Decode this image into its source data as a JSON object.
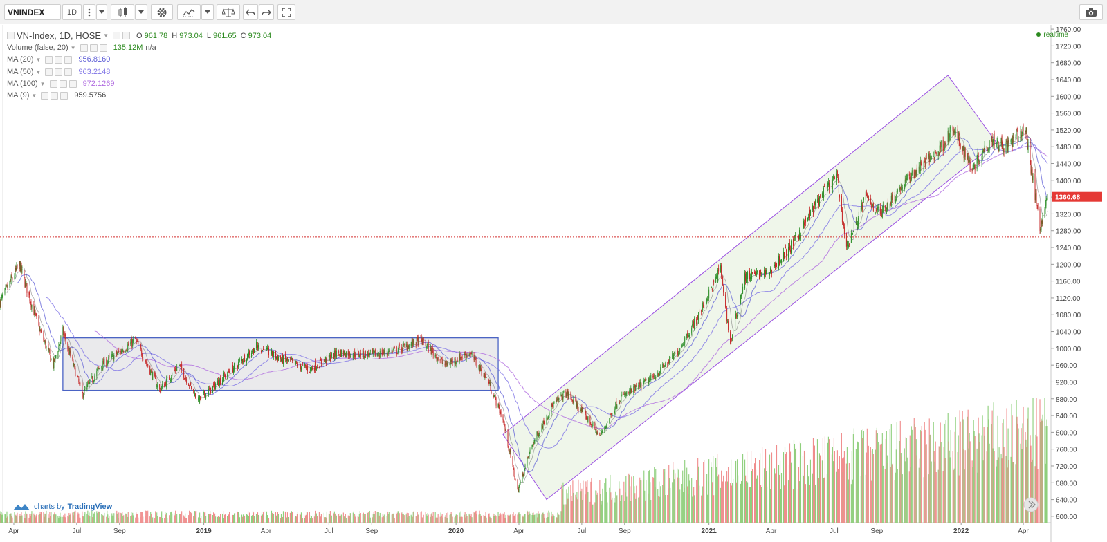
{
  "toolbar": {
    "symbol": "VNINDEX",
    "interval": "1D",
    "tools": [
      "more-vertical-icon",
      "dropdown-arrow-icon",
      "candles-icon",
      "dropdown-arrow-icon",
      "gear-icon",
      "indicators-icon",
      "dropdown-arrow-icon",
      "compare-icon",
      "undo-icon",
      "redo-icon",
      "fullscreen-icon",
      "camera-icon"
    ]
  },
  "legend": {
    "main_title": "VN-Index, 1D, HOSE",
    "o_label": "O",
    "o_value": "961.78",
    "h_label": "H",
    "h_value": "973.04",
    "l_label": "L",
    "l_value": "961.65",
    "c_label": "C",
    "c_value": "973.04",
    "volume_title": "Volume (false, 20)",
    "volume_value": "135.12M",
    "volume_extra": "n/a",
    "ma20_title": "MA (20)",
    "ma20_value": "956.8160",
    "ma50_title": "MA (50)",
    "ma50_value": "963.2148",
    "ma100_title": "MA (100)",
    "ma100_value": "972.1269",
    "ma9_title": "MA (9)",
    "ma9_value": "959.5756",
    "realtime": "realtime"
  },
  "colors": {
    "up": "#2f8f2a",
    "down": "#c62828",
    "vol_up": "#8fcf7c",
    "vol_down": "#f08c8c",
    "ma20": "#5b5bd6",
    "ma50": "#7e73e6",
    "ma100": "#b06be0",
    "ma9": "#444444",
    "channel": "#9b4fe3",
    "rect": "#4a63c4",
    "price_tag": "#e53935"
  },
  "branding": {
    "text": "charts by",
    "link": "TradingView"
  },
  "chart_data": {
    "type": "candlestick",
    "ylim": [
      585,
      1770
    ],
    "y_ticks": [
      600,
      640,
      680,
      720,
      760,
      800,
      840,
      880,
      920,
      960,
      1000,
      1040,
      1080,
      1120,
      1160,
      1200,
      1240,
      1280,
      1320,
      1360,
      1400,
      1440,
      1480,
      1520,
      1560,
      1600,
      1640,
      1680,
      1720,
      1760
    ],
    "y_tick_labels": [
      "600.00",
      "640.00",
      "680.00",
      "720.00",
      "760.00",
      "800.00",
      "840.00",
      "880.00",
      "920.00",
      "960.00",
      "1000.00",
      "1040.00",
      "1080.00",
      "1120.00",
      "1160.00",
      "1200.00",
      "1240.00",
      "1280.00",
      "1320.00",
      "1360.00",
      "1400.00",
      "1440.00",
      "1480.00",
      "1520.00",
      "1560.00",
      "1600.00",
      "1640.00",
      "1680.00",
      "1720.00",
      "1760.00"
    ],
    "x_start": "2018-03-12",
    "x_end": "2022-05-10",
    "x_ticks": [
      {
        "date": "2018-04-01",
        "label": "Apr"
      },
      {
        "date": "2018-07-01",
        "label": "Jul"
      },
      {
        "date": "2018-09-01",
        "label": "Sep"
      },
      {
        "date": "2019-01-01",
        "label": "2019"
      },
      {
        "date": "2019-04-01",
        "label": "Apr"
      },
      {
        "date": "2019-07-01",
        "label": "Jul"
      },
      {
        "date": "2019-09-01",
        "label": "Sep"
      },
      {
        "date": "2020-01-01",
        "label": "2020"
      },
      {
        "date": "2020-04-01",
        "label": "Apr"
      },
      {
        "date": "2020-07-01",
        "label": "Jul"
      },
      {
        "date": "2020-09-01",
        "label": "Sep"
      },
      {
        "date": "2021-01-01",
        "label": "2021"
      },
      {
        "date": "2021-04-01",
        "label": "Apr"
      },
      {
        "date": "2021-07-01",
        "label": "Jul"
      },
      {
        "date": "2021-09-01",
        "label": "Sep"
      },
      {
        "date": "2022-01-01",
        "label": "2022"
      },
      {
        "date": "2022-04-01",
        "label": "Apr"
      }
    ],
    "close_path": [
      {
        "date": "2018-03-12",
        "close": 1110
      },
      {
        "date": "2018-04-09",
        "close": 1200
      },
      {
        "date": "2018-05-07",
        "close": 1050
      },
      {
        "date": "2018-05-28",
        "close": 960
      },
      {
        "date": "2018-06-11",
        "close": 1040
      },
      {
        "date": "2018-07-09",
        "close": 890
      },
      {
        "date": "2018-08-06",
        "close": 960
      },
      {
        "date": "2018-09-24",
        "close": 1020
      },
      {
        "date": "2018-10-29",
        "close": 900
      },
      {
        "date": "2018-11-26",
        "close": 960
      },
      {
        "date": "2018-12-24",
        "close": 875
      },
      {
        "date": "2019-02-04",
        "close": 940
      },
      {
        "date": "2019-03-18",
        "close": 1005
      },
      {
        "date": "2019-04-22",
        "close": 975
      },
      {
        "date": "2019-06-03",
        "close": 950
      },
      {
        "date": "2019-07-15",
        "close": 990
      },
      {
        "date": "2019-09-02",
        "close": 985
      },
      {
        "date": "2019-10-07",
        "close": 995
      },
      {
        "date": "2019-11-11",
        "close": 1020
      },
      {
        "date": "2019-12-16",
        "close": 960
      },
      {
        "date": "2020-01-20",
        "close": 990
      },
      {
        "date": "2020-02-17",
        "close": 920
      },
      {
        "date": "2020-03-09",
        "close": 830
      },
      {
        "date": "2020-03-30",
        "close": 660
      },
      {
        "date": "2020-04-20",
        "close": 770
      },
      {
        "date": "2020-05-18",
        "close": 860
      },
      {
        "date": "2020-06-08",
        "close": 895
      },
      {
        "date": "2020-07-06",
        "close": 840
      },
      {
        "date": "2020-07-27",
        "close": 790
      },
      {
        "date": "2020-08-24",
        "close": 880
      },
      {
        "date": "2020-10-12",
        "close": 930
      },
      {
        "date": "2020-11-16",
        "close": 990
      },
      {
        "date": "2020-12-21",
        "close": 1090
      },
      {
        "date": "2021-01-18",
        "close": 1190
      },
      {
        "date": "2021-02-01",
        "close": 1010
      },
      {
        "date": "2021-02-22",
        "close": 1170
      },
      {
        "date": "2021-03-29",
        "close": 1180
      },
      {
        "date": "2021-05-03",
        "close": 1250
      },
      {
        "date": "2021-06-07",
        "close": 1350
      },
      {
        "date": "2021-07-05",
        "close": 1410
      },
      {
        "date": "2021-07-19",
        "close": 1240
      },
      {
        "date": "2021-08-16",
        "close": 1360
      },
      {
        "date": "2021-09-06",
        "close": 1320
      },
      {
        "date": "2021-10-04",
        "close": 1380
      },
      {
        "date": "2021-11-01",
        "close": 1430
      },
      {
        "date": "2021-11-29",
        "close": 1470
      },
      {
        "date": "2021-12-20",
        "close": 1520
      },
      {
        "date": "2022-01-17",
        "close": 1430
      },
      {
        "date": "2022-02-14",
        "close": 1500
      },
      {
        "date": "2022-03-07",
        "close": 1480
      },
      {
        "date": "2022-04-04",
        "close": 1520
      },
      {
        "date": "2022-04-25",
        "close": 1290
      },
      {
        "date": "2022-05-06",
        "close": 1360
      }
    ],
    "last_price": 1360.68,
    "last_price_label": "1360.68",
    "horizontal_line": 1265,
    "rectangle": {
      "from": "2018-06-11",
      "to": "2020-03-02",
      "top": 1025,
      "bottom": 900
    },
    "channel": {
      "p1": {
        "date": "2020-03-09",
        "price": 795
      },
      "p2": {
        "date": "2021-12-13",
        "price": 1650
      },
      "p3": {
        "date": "2022-02-21",
        "price": 1490
      },
      "p4": {
        "date": "2020-05-11",
        "price": 640
      }
    },
    "volume_scale_max": 180
  }
}
